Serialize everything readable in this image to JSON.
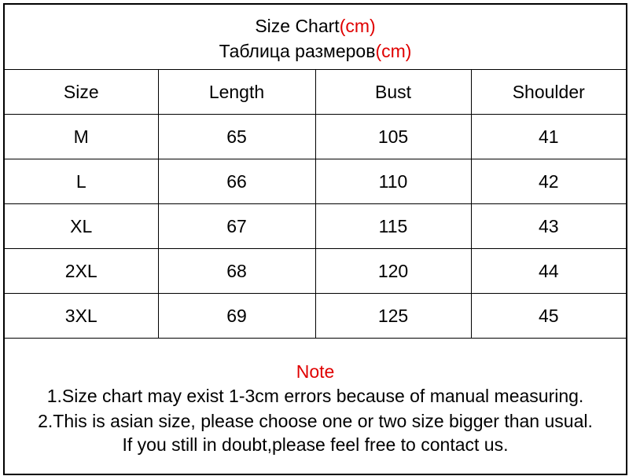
{
  "title": {
    "line1": "Size Chart",
    "line1_unit": "(cm)",
    "line2": "Таблица размеров",
    "line2_unit": "(cm)"
  },
  "table": {
    "headers": [
      "Size",
      "Length",
      "Bust",
      "Shoulder"
    ],
    "rows": [
      [
        "M",
        "65",
        "105",
        "41"
      ],
      [
        "L",
        "66",
        "110",
        "42"
      ],
      [
        "XL",
        "67",
        "115",
        "43"
      ],
      [
        "2XL",
        "68",
        "120",
        "44"
      ],
      [
        "3XL",
        "69",
        "125",
        "45"
      ]
    ]
  },
  "note": {
    "heading": "Note",
    "lines": [
      "1.Size chart may exist 1-3cm errors because of manual measuring.",
      "2.This is asian size, please choose one or two size bigger than usual.",
      "If you still in doubt,please feel free to contact us."
    ]
  },
  "colors": {
    "accent": "#e00000",
    "border": "#000000"
  }
}
